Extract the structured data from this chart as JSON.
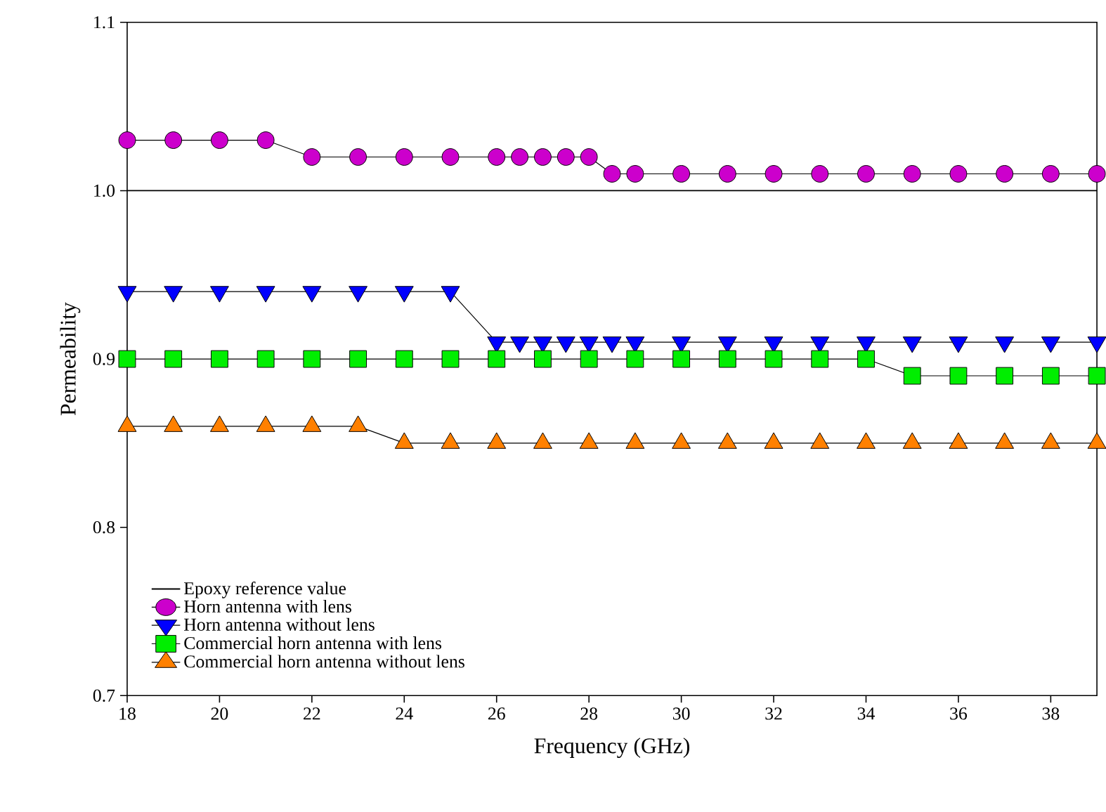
{
  "chart_data": {
    "type": "line",
    "xlabel": "Frequency (GHz)",
    "ylabel": "Permeability",
    "xlim": [
      18,
      39
    ],
    "ylim": [
      0.7,
      1.1
    ],
    "xticks": [
      18,
      20,
      22,
      24,
      26,
      28,
      30,
      32,
      34,
      36,
      38
    ],
    "yticks": [
      0.7,
      0.8,
      0.9,
      {
        "value": 1.0,
        "label": "1.0"
      },
      1.1
    ],
    "grid": false,
    "legend": "bottom left",
    "ref_lines": [
      {
        "axis": "y",
        "value": 1.0,
        "label": "Epoxy reference value",
        "color": "#000000",
        "line_style": "solid"
      }
    ],
    "series": [
      {
        "name": "Horn antenna with lens",
        "color": "#cc00cc",
        "marker": "circle",
        "x": [
          18,
          19,
          20,
          21,
          22,
          23,
          24,
          25,
          26,
          26.5,
          27,
          27.5,
          28,
          28.5,
          29,
          30,
          31,
          32,
          33,
          34,
          35,
          36,
          37,
          38,
          39
        ],
        "values": [
          1.03,
          1.03,
          1.03,
          1.03,
          1.02,
          1.02,
          1.02,
          1.02,
          1.02,
          1.02,
          1.02,
          1.02,
          1.02,
          1.01,
          1.01,
          1.01,
          1.01,
          1.01,
          1.01,
          1.01,
          1.01,
          1.01,
          1.01,
          1.01,
          1.01
        ]
      },
      {
        "name": "Horn antenna without lens",
        "color": "#0000ff",
        "marker": "triangle-down",
        "x": [
          18,
          19,
          20,
          21,
          22,
          23,
          24,
          25,
          26,
          26.5,
          27,
          27.5,
          28,
          28.5,
          29,
          30,
          31,
          32,
          33,
          34,
          35,
          36,
          37,
          38,
          39
        ],
        "values": [
          0.94,
          0.94,
          0.94,
          0.94,
          0.94,
          0.94,
          0.94,
          0.94,
          0.91,
          0.91,
          0.91,
          0.91,
          0.91,
          0.91,
          0.91,
          0.91,
          0.91,
          0.91,
          0.91,
          0.91,
          0.91,
          0.91,
          0.91,
          0.91,
          0.91
        ]
      },
      {
        "name": "Commercial horn antenna with lens",
        "color": "#00ee00",
        "marker": "square",
        "x": [
          18,
          19,
          20,
          21,
          22,
          23,
          24,
          25,
          26,
          27,
          28,
          29,
          30,
          31,
          32,
          33,
          34,
          35,
          36,
          37,
          38,
          39
        ],
        "values": [
          0.9,
          0.9,
          0.9,
          0.9,
          0.9,
          0.9,
          0.9,
          0.9,
          0.9,
          0.9,
          0.9,
          0.9,
          0.9,
          0.9,
          0.9,
          0.9,
          0.9,
          0.89,
          0.89,
          0.89,
          0.89,
          0.89
        ]
      },
      {
        "name": "Commercial horn antenna without lens",
        "color": "#ff8000",
        "marker": "triangle",
        "x": [
          18,
          19,
          20,
          21,
          22,
          23,
          24,
          25,
          26,
          27,
          28,
          29,
          30,
          31,
          32,
          33,
          34,
          35,
          36,
          37,
          38,
          39
        ],
        "values": [
          0.86,
          0.86,
          0.86,
          0.86,
          0.86,
          0.86,
          0.85,
          0.85,
          0.85,
          0.85,
          0.85,
          0.85,
          0.85,
          0.85,
          0.85,
          0.85,
          0.85,
          0.85,
          0.85,
          0.85,
          0.85,
          0.85
        ]
      }
    ]
  }
}
